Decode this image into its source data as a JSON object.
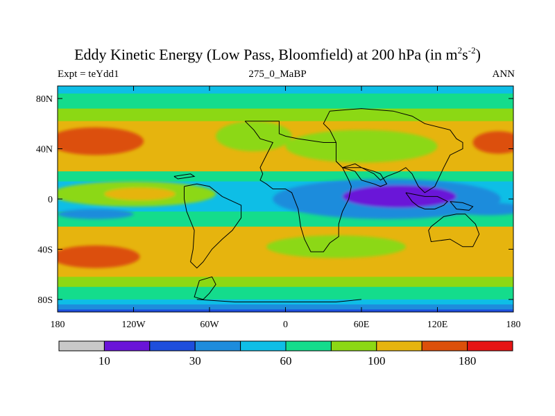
{
  "title": {
    "prefix": "Eddy Kinetic Energy (Low Pass, Bloomfield) at 200 hPa (in m",
    "sup1": "2",
    "mid": "s",
    "sup2": "-2",
    "suffix": ")"
  },
  "subtitle_left": "Expt = teYdd1",
  "subtitle_center": "275_0_MaBP",
  "subtitle_right": "ANN",
  "chart_data": {
    "type": "heatmap",
    "variable": "Eddy Kinetic Energy (Low Pass, Bloomfield)",
    "level": "200 hPa",
    "units": "m2s-2",
    "x_range": [
      -180,
      180
    ],
    "y_range": [
      -90,
      90
    ],
    "x_ticks": [
      {
        "value": -180,
        "label": "180"
      },
      {
        "value": -120,
        "label": "120W"
      },
      {
        "value": -60,
        "label": "60W"
      },
      {
        "value": 0,
        "label": "0"
      },
      {
        "value": 60,
        "label": "60E"
      },
      {
        "value": 120,
        "label": "120E"
      },
      {
        "value": 180,
        "label": "180"
      }
    ],
    "y_ticks": [
      {
        "value": 80,
        "label": "80N"
      },
      {
        "value": 40,
        "label": "40N"
      },
      {
        "value": 0,
        "label": "0"
      },
      {
        "value": -40,
        "label": "40S"
      },
      {
        "value": -80,
        "label": "80S"
      }
    ],
    "colorbar": {
      "colors": [
        "#c8c8c8",
        "#6a14d8",
        "#1e4edc",
        "#1e8cdc",
        "#0ebee6",
        "#14dc8c",
        "#8cd814",
        "#e6b40e",
        "#dc500a",
        "#e61414"
      ],
      "tick_labels": [
        {
          "after_box": 1,
          "label": "10"
        },
        {
          "after_box": 3,
          "label": "30"
        },
        {
          "after_box": 5,
          "label": "60"
        },
        {
          "after_box": 7,
          "label": "100"
        },
        {
          "after_box": 9,
          "label": "180"
        }
      ]
    },
    "zonal_bands": [
      {
        "lat_top": 90,
        "lat_bottom": 84,
        "level": 4
      },
      {
        "lat_top": 84,
        "lat_bottom": 72,
        "level": 5
      },
      {
        "lat_top": 72,
        "lat_bottom": 62,
        "level": 6
      },
      {
        "lat_top": 62,
        "lat_bottom": 22,
        "level": 7
      },
      {
        "lat_top": 22,
        "lat_bottom": 14,
        "level": 5
      },
      {
        "lat_top": 14,
        "lat_bottom": -10,
        "level": 4
      },
      {
        "lat_top": -10,
        "lat_bottom": -22,
        "level": 5
      },
      {
        "lat_top": -22,
        "lat_bottom": -62,
        "level": 7
      },
      {
        "lat_top": -62,
        "lat_bottom": -70,
        "level": 6
      },
      {
        "lat_top": -70,
        "lat_bottom": -80,
        "level": 5
      },
      {
        "lat_top": -80,
        "lat_bottom": -84,
        "level": 4
      },
      {
        "lat_top": -84,
        "lat_bottom": -88,
        "level": 3
      },
      {
        "lat_top": -88,
        "lat_bottom": -90,
        "level": 2
      }
    ],
    "features": [
      {
        "name": "NH jet core west",
        "lon": -150,
        "lat": 46,
        "dlon": 38,
        "dlat": 11,
        "level": 8
      },
      {
        "name": "NH jet core east",
        "lon": 168,
        "lat": 45,
        "dlon": 20,
        "dlat": 9,
        "level": 8
      },
      {
        "name": "NH mid-lat weak zone",
        "lon": 60,
        "lat": 42,
        "dlon": 60,
        "dlat": 13,
        "level": 6
      },
      {
        "name": "N Atlantic weak zone",
        "lon": -25,
        "lat": 50,
        "dlon": 30,
        "dlat": 12,
        "level": 6
      },
      {
        "name": "SH jet core west",
        "lon": -150,
        "lat": -46,
        "dlon": 35,
        "dlat": 9,
        "level": 8
      },
      {
        "name": "SH weak zone",
        "lon": 40,
        "lat": -38,
        "dlon": 55,
        "dlat": 9,
        "level": 6
      },
      {
        "name": "tropical pacific band",
        "lon": -120,
        "lat": 4,
        "dlon": 65,
        "dlat": 10,
        "level": 6
      },
      {
        "name": "tropical pacific max",
        "lon": -115,
        "lat": 4,
        "dlon": 28,
        "dlat": 5,
        "level": 7
      },
      {
        "name": "equatorial low",
        "lon": 80,
        "lat": 0,
        "dlon": 90,
        "dlat": 16,
        "level": 3
      },
      {
        "name": "equatorial minimum",
        "lon": 90,
        "lat": 2,
        "dlon": 45,
        "dlat": 9,
        "level": 1
      },
      {
        "name": "S pacific band",
        "lon": 160,
        "lat": -8,
        "dlon": 30,
        "dlat": 5,
        "level": 3
      },
      {
        "name": "SE pacific low",
        "lon": -150,
        "lat": -12,
        "dlon": 30,
        "dlat": 4,
        "level": 3
      }
    ],
    "continents": [
      {
        "name": "africa-europe",
        "points": [
          [
            -32,
            62
          ],
          [
            -5,
            62
          ],
          [
            -5,
            52
          ],
          [
            0,
            50
          ],
          [
            10,
            48
          ],
          [
            30,
            45
          ],
          [
            40,
            45
          ],
          [
            40,
            30
          ],
          [
            45,
            25
          ],
          [
            50,
            15
          ],
          [
            52,
            10
          ],
          [
            50,
            0
          ],
          [
            45,
            -10
          ],
          [
            42,
            -20
          ],
          [
            42,
            -30
          ],
          [
            35,
            -35
          ],
          [
            30,
            -42
          ],
          [
            20,
            -42
          ],
          [
            15,
            -32
          ],
          [
            12,
            -22
          ],
          [
            10,
            -8
          ],
          [
            5,
            5
          ],
          [
            0,
            8
          ],
          [
            -10,
            8
          ],
          [
            -15,
            12
          ],
          [
            -20,
            15
          ],
          [
            -18,
            20
          ],
          [
            -20,
            25
          ],
          [
            -15,
            35
          ],
          [
            -10,
            45
          ],
          [
            -20,
            48
          ],
          [
            -25,
            55
          ],
          [
            -32,
            62
          ]
        ]
      },
      {
        "name": "asia",
        "points": [
          [
            35,
            70
          ],
          [
            60,
            72
          ],
          [
            85,
            70
          ],
          [
            100,
            66
          ],
          [
            110,
            60
          ],
          [
            130,
            55
          ],
          [
            135,
            48
          ],
          [
            140,
            45
          ],
          [
            140,
            40
          ],
          [
            130,
            35
          ],
          [
            125,
            25
          ],
          [
            118,
            10
          ],
          [
            110,
            5
          ],
          [
            105,
            10
          ],
          [
            100,
            20
          ],
          [
            95,
            25
          ],
          [
            90,
            22
          ],
          [
            80,
            18
          ],
          [
            75,
            15
          ],
          [
            70,
            20
          ],
          [
            60,
            25
          ],
          [
            55,
            28
          ],
          [
            45,
            25
          ],
          [
            40,
            30
          ],
          [
            40,
            45
          ],
          [
            35,
            55
          ],
          [
            30,
            60
          ],
          [
            35,
            70
          ]
        ]
      },
      {
        "name": "arabia-india",
        "points": [
          [
            45,
            25
          ],
          [
            55,
            22
          ],
          [
            60,
            15
          ],
          [
            70,
            12
          ],
          [
            75,
            10
          ],
          [
            80,
            12
          ],
          [
            75,
            20
          ],
          [
            70,
            22
          ],
          [
            60,
            25
          ],
          [
            45,
            25
          ]
        ]
      },
      {
        "name": "south america",
        "points": [
          [
            -80,
            10
          ],
          [
            -70,
            12
          ],
          [
            -60,
            10
          ],
          [
            -50,
            2
          ],
          [
            -35,
            -5
          ],
          [
            -35,
            -15
          ],
          [
            -42,
            -25
          ],
          [
            -50,
            -32
          ],
          [
            -58,
            -40
          ],
          [
            -65,
            -50
          ],
          [
            -70,
            -55
          ],
          [
            -75,
            -50
          ],
          [
            -73,
            -40
          ],
          [
            -72,
            -25
          ],
          [
            -78,
            -10
          ],
          [
            -80,
            0
          ],
          [
            -80,
            10
          ]
        ]
      },
      {
        "name": "australia",
        "points": [
          [
            115,
            -22
          ],
          [
            125,
            -14
          ],
          [
            135,
            -12
          ],
          [
            142,
            -12
          ],
          [
            150,
            -20
          ],
          [
            153,
            -28
          ],
          [
            148,
            -38
          ],
          [
            140,
            -38
          ],
          [
            130,
            -32
          ],
          [
            115,
            -34
          ],
          [
            113,
            -25
          ],
          [
            115,
            -22
          ]
        ]
      },
      {
        "name": "antarctic peninsula",
        "points": [
          [
            -68,
            -65
          ],
          [
            -58,
            -62
          ],
          [
            -55,
            -68
          ],
          [
            -60,
            -75
          ],
          [
            -65,
            -80
          ],
          [
            -72,
            -78
          ],
          [
            -68,
            -65
          ]
        ]
      },
      {
        "name": "antarctica rim",
        "points": [
          [
            -70,
            -80
          ],
          [
            -40,
            -82
          ],
          [
            0,
            -82
          ],
          [
            40,
            -82
          ],
          [
            60,
            -80
          ]
        ]
      },
      {
        "name": "maritime islands",
        "points": [
          [
            95,
            5
          ],
          [
            100,
            -2
          ],
          [
            105,
            -6
          ],
          [
            110,
            -8
          ],
          [
            118,
            -8
          ],
          [
            125,
            -5
          ],
          [
            128,
            -2
          ],
          [
            120,
            2
          ],
          [
            110,
            2
          ],
          [
            100,
            4
          ],
          [
            95,
            5
          ]
        ]
      },
      {
        "name": "new guinea",
        "points": [
          [
            130,
            -2
          ],
          [
            140,
            -3
          ],
          [
            148,
            -6
          ],
          [
            145,
            -9
          ],
          [
            135,
            -8
          ],
          [
            130,
            -2
          ]
        ]
      },
      {
        "name": "cuba strip",
        "points": [
          [
            -88,
            18
          ],
          [
            -75,
            20
          ],
          [
            -72,
            18
          ],
          [
            -85,
            16
          ],
          [
            -88,
            18
          ]
        ]
      }
    ]
  }
}
